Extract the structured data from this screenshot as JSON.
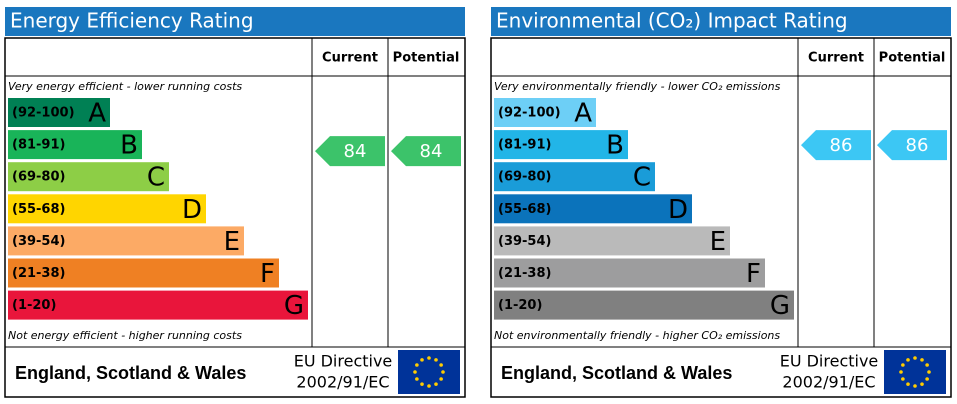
{
  "panels": [
    {
      "title": "Energy Efficiency Rating",
      "columns": [
        "Current",
        "Potential"
      ],
      "top_note": "Very energy efficient - lower running costs",
      "bottom_note": "Not energy efficient - higher running costs",
      "bands": [
        {
          "range": "(92-100)",
          "letter": "A",
          "color": "#008054"
        },
        {
          "range": "(81-91)",
          "letter": "B",
          "color": "#19b459"
        },
        {
          "range": "(69-80)",
          "letter": "C",
          "color": "#8dce46"
        },
        {
          "range": "(55-68)",
          "letter": "D",
          "color": "#ffd500"
        },
        {
          "range": "(39-54)",
          "letter": "E",
          "color": "#fcaa65"
        },
        {
          "range": "(21-38)",
          "letter": "F",
          "color": "#ef8023"
        },
        {
          "range": "(1-20)",
          "letter": "G",
          "color": "#e9153b"
        }
      ],
      "current": 84,
      "potential": 84,
      "indicator_color": "#3cc36a",
      "footer": {
        "region": "England, Scotland & Wales",
        "directive_line1": "EU Directive",
        "directive_line2": "2002/91/EC"
      }
    },
    {
      "title": "Environmental (CO₂) Impact Rating",
      "columns": [
        "Current",
        "Potential"
      ],
      "top_note": "Very environmentally friendly - lower CO₂ emissions",
      "bottom_note": "Not environmentally friendly - higher CO₂ emissions",
      "bands": [
        {
          "range": "(92-100)",
          "letter": "A",
          "color": "#6dcff6"
        },
        {
          "range": "(81-91)",
          "letter": "B",
          "color": "#22b5e7"
        },
        {
          "range": "(69-80)",
          "letter": "C",
          "color": "#1a9cd8"
        },
        {
          "range": "(55-68)",
          "letter": "D",
          "color": "#0b73bb"
        },
        {
          "range": "(39-54)",
          "letter": "E",
          "color": "#bababa"
        },
        {
          "range": "(21-38)",
          "letter": "F",
          "color": "#9d9d9e"
        },
        {
          "range": "(1-20)",
          "letter": "G",
          "color": "#808080"
        }
      ],
      "current": 86,
      "potential": 86,
      "indicator_color": "#3cc7f4",
      "footer": {
        "region": "England, Scotland & Wales",
        "directive_line1": "EU Directive",
        "directive_line2": "2002/91/EC"
      }
    }
  ]
}
